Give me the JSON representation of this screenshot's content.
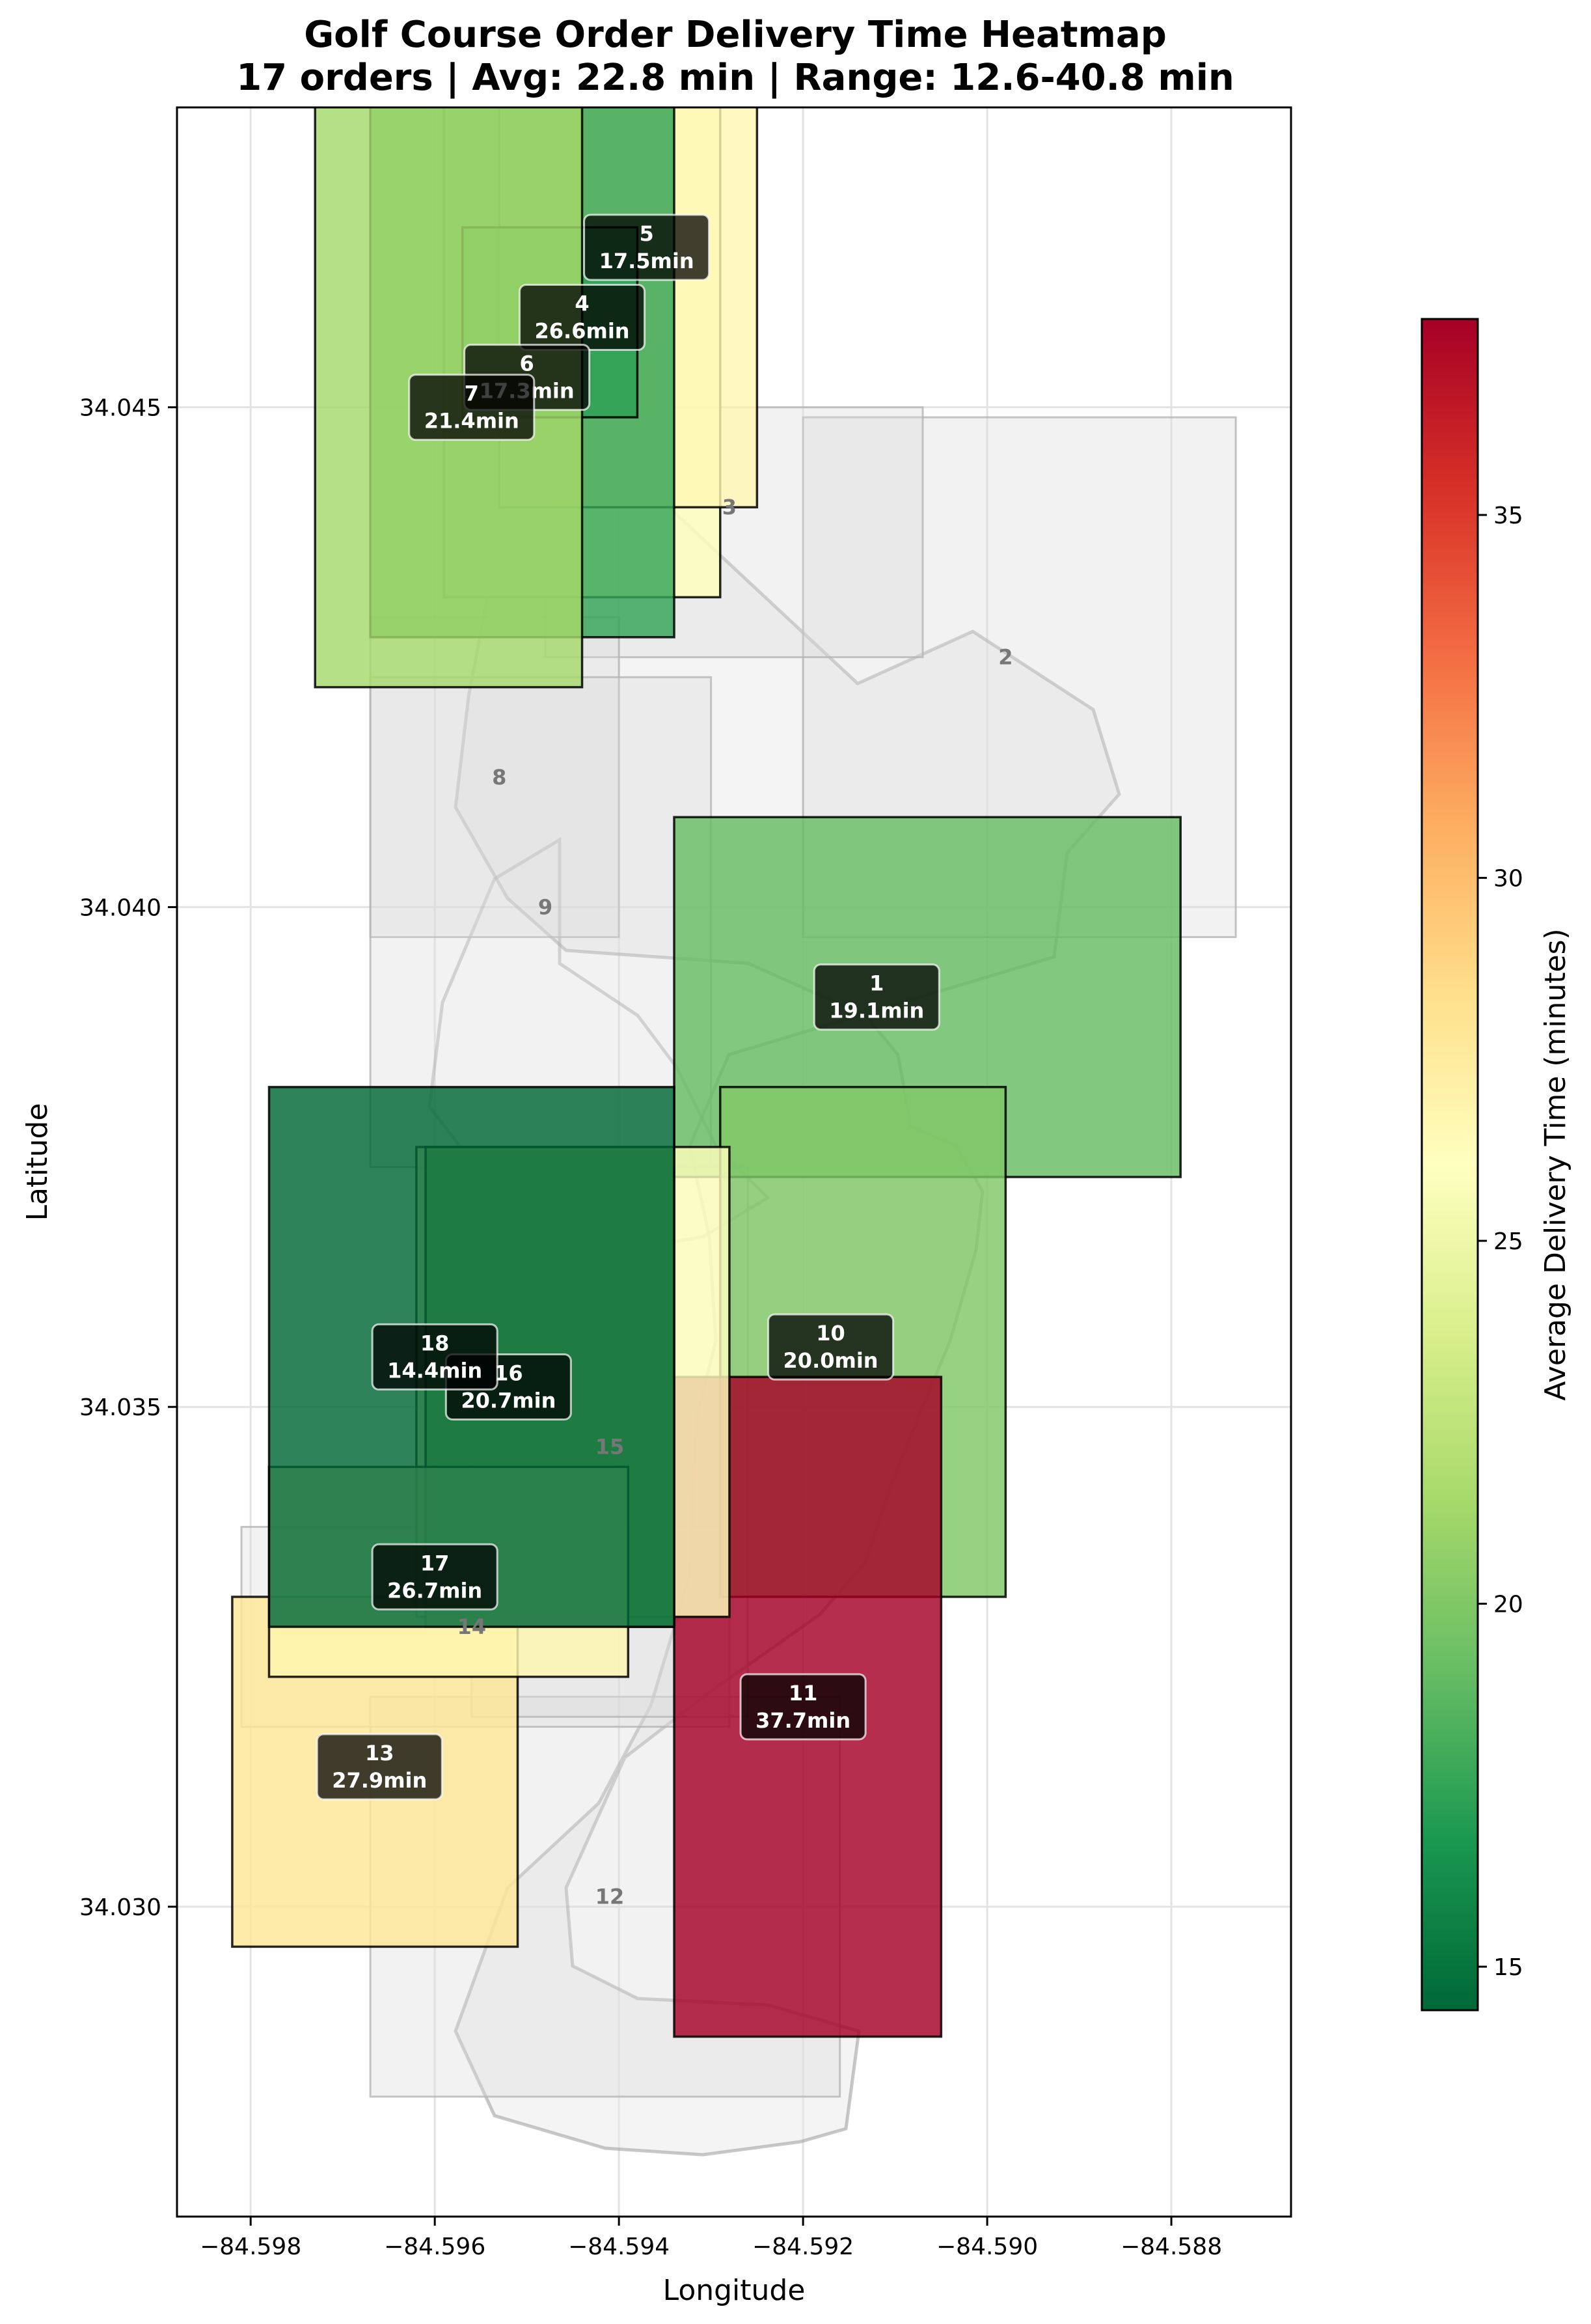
{
  "chart_data": {
    "type": "heatmap",
    "title": "Golf Course Order Delivery Time Heatmap",
    "subtitle": "17 orders | Avg: 22.8 min | Range: 12.6-40.8 min",
    "xlabel": "Longitude",
    "ylabel": "Latitude",
    "colorbar_label": "Average Delivery Time (minutes)",
    "colormap": "RdYlGn_r",
    "color_range": [
      14.4,
      37.7
    ],
    "xlim": [
      -84.5988,
      -84.5867
    ],
    "ylim": [
      34.0269,
      34.048
    ],
    "x_ticks": [
      {
        "value": -84.598,
        "label": "−84.598"
      },
      {
        "value": -84.596,
        "label": "−84.596"
      },
      {
        "value": -84.594,
        "label": "−84.594"
      },
      {
        "value": -84.592,
        "label": "−84.592"
      },
      {
        "value": -84.59,
        "label": "−84.590"
      },
      {
        "value": -84.588,
        "label": "−84.588"
      }
    ],
    "y_ticks": [
      {
        "value": 34.03,
        "label": "34.030"
      },
      {
        "value": 34.035,
        "label": "34.035"
      },
      {
        "value": 34.04,
        "label": "34.040"
      },
      {
        "value": 34.045,
        "label": "34.045"
      }
    ],
    "colorbar_ticks": [
      {
        "value": 15,
        "label": "15"
      },
      {
        "value": 20,
        "label": "20"
      },
      {
        "value": 25,
        "label": "25"
      },
      {
        "value": 30,
        "label": "30"
      },
      {
        "value": 35,
        "label": "35"
      }
    ],
    "grid": true,
    "holes_without_orders": [
      {
        "hole": "2",
        "lon_min": -84.592,
        "lon_max": -84.5873,
        "lat_min": 34.0397,
        "lat_max": 34.0449,
        "label_lon": -84.5898,
        "label_lat": 34.0425
      },
      {
        "hole": "3",
        "lon_min": -84.5948,
        "lon_max": -84.5907,
        "lat_min": 34.0425,
        "lat_max": 34.045,
        "label_lon": -84.5928,
        "label_lat": 34.044
      },
      {
        "hole": "8",
        "lon_min": -84.5967,
        "lon_max": -84.594,
        "lat_min": 34.0397,
        "lat_max": 34.0429,
        "label_lon": -84.5953,
        "label_lat": 34.0413
      },
      {
        "hole": "9",
        "lon_min": -84.5967,
        "lon_max": -84.593,
        "lat_min": 34.0374,
        "lat_max": 34.0423,
        "label_lon": -84.5948,
        "label_lat": 34.04
      },
      {
        "hole": "12",
        "lon_min": -84.5967,
        "lon_max": -84.5916,
        "lat_min": 34.0281,
        "lat_max": 34.0321,
        "label_lon": -84.5941,
        "label_lat": 34.0301
      },
      {
        "hole": "14",
        "lon_min": -84.5981,
        "lon_max": -84.5928,
        "lat_min": 34.0318,
        "lat_max": 34.0338,
        "label_lon": -84.5956,
        "label_lat": 34.0328
      },
      {
        "hole": "15",
        "lon_min": -84.5956,
        "lon_max": -84.5926,
        "lat_min": 34.0319,
        "lat_max": 34.0374,
        "label_lon": -84.5941,
        "label_lat": 34.0346
      }
    ],
    "orders": [
      {
        "hole": "1",
        "avg_minutes": 19.1,
        "label": "19.1min",
        "lon_min": -84.5934,
        "lon_max": -84.5879,
        "lat_min": 34.0373,
        "lat_max": 34.0409,
        "label_lon": -84.5912,
        "label_lat": 34.0391
      },
      {
        "hole": "3",
        "avg_minutes": 25.9,
        "label": "",
        "lon_min": -84.5959,
        "lon_max": -84.5929,
        "lat_min": 34.0431,
        "lat_max": 34.0485,
        "label_lon": -84.5944,
        "label_lat": 34.0455
      },
      {
        "hole": "4",
        "avg_minutes": 26.6,
        "label": "26.6min",
        "lon_min": -84.5953,
        "lon_max": -84.5925,
        "lat_min": 34.044,
        "lat_max": 34.0489,
        "label_lon": -84.5944,
        "label_lat": 34.0459
      },
      {
        "hole": "5",
        "avg_minutes": 17.5,
        "label": "17.5min",
        "lon_min": -84.5967,
        "lon_max": -84.5934,
        "lat_min": 34.0427,
        "lat_max": 34.0481,
        "label_lon": -84.5937,
        "label_lat": 34.0466
      },
      {
        "hole": "6",
        "avg_minutes": 17.3,
        "label": "17.3min",
        "lon_min": -84.5957,
        "lon_max": -84.5938,
        "lat_min": 34.0449,
        "lat_max": 34.0468,
        "label_lon": -84.595,
        "label_lat": 34.0453
      },
      {
        "hole": "7",
        "avg_minutes": 21.4,
        "label": "21.4min",
        "lon_min": -84.5973,
        "lon_max": -84.5944,
        "lat_min": 34.0422,
        "lat_max": 34.0482,
        "label_lon": -84.5956,
        "label_lat": 34.045
      },
      {
        "hole": "10",
        "avg_minutes": 20.0,
        "label": "20.0min",
        "lon_min": -84.5929,
        "lon_max": -84.5898,
        "lat_min": 34.0331,
        "lat_max": 34.0382,
        "label_lon": -84.5917,
        "label_lat": 34.0356
      },
      {
        "hole": "11",
        "avg_minutes": 37.7,
        "label": "37.7min",
        "lon_min": -84.5934,
        "lon_max": -84.5905,
        "lat_min": 34.0287,
        "lat_max": 34.0353,
        "label_lon": -84.592,
        "label_lat": 34.032
      },
      {
        "hole": "13",
        "avg_minutes": 27.9,
        "label": "27.9min",
        "lon_min": -84.5982,
        "lon_max": -84.5951,
        "lat_min": 34.0296,
        "lat_max": 34.0331,
        "label_lon": -84.5966,
        "label_lat": 34.0314
      },
      {
        "hole": "15",
        "avg_minutes": 25.9,
        "label": "",
        "lon_min": -84.5962,
        "lon_max": -84.5928,
        "lat_min": 34.0329,
        "lat_max": 34.0376,
        "label_lon": -84.5945,
        "label_lat": 34.0352
      },
      {
        "hole": "16",
        "avg_minutes": 20.7,
        "label": "20.7min",
        "lon_min": -84.5961,
        "lon_max": -84.5934,
        "lat_min": 34.0328,
        "lat_max": 34.0376,
        "label_lon": -84.5952,
        "label_lat": 34.0352
      },
      {
        "hole": "17",
        "avg_minutes": 26.7,
        "label": "26.7min",
        "lon_min": -84.5978,
        "lon_max": -84.5939,
        "lat_min": 34.0323,
        "lat_max": 34.0344,
        "label_lon": -84.596,
        "label_lat": 34.0333
      },
      {
        "hole": "18",
        "avg_minutes": 14.4,
        "label": "14.4min",
        "lon_min": -84.5978,
        "lon_max": -84.5934,
        "lat_min": 34.0328,
        "lat_max": 34.0382,
        "label_lon": -84.596,
        "label_lat": 34.0355
      }
    ]
  }
}
